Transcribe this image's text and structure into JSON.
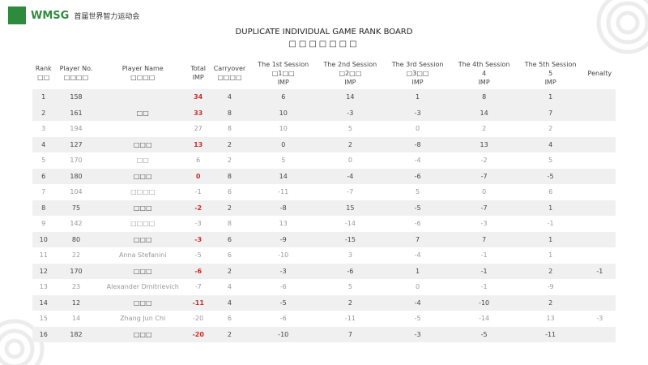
{
  "header": {
    "logo_text": "WMSG",
    "event_name": "首届世界智力运动会",
    "title": "DUPLICATE INDIVIDUAL GAME RANK BOARD",
    "subtitle": "□□□□□□□"
  },
  "table": {
    "columns": [
      [
        "Rank",
        "□□"
      ],
      [
        "Player No.",
        "□□□□"
      ],
      [
        "Player Name",
        "□□□□"
      ],
      [
        "Total",
        "IMP"
      ],
      [
        "Carryover",
        "□□□□"
      ],
      [
        "The 1st Session",
        "□1□□",
        "IMP"
      ],
      [
        "The 2nd Session",
        "□2□□",
        "IMP"
      ],
      [
        "The 3rd Session",
        "□3□□",
        "IMP"
      ],
      [
        "The 4th Session",
        "4",
        "IMP"
      ],
      [
        "The 5th Session",
        "5",
        "IMP"
      ],
      [
        "Penalty"
      ]
    ],
    "rows": [
      {
        "cells": [
          1,
          158,
          "",
          34,
          4,
          6,
          14,
          1,
          8,
          1,
          ""
        ],
        "highlight": true
      },
      {
        "cells": [
          2,
          161,
          "□□",
          33,
          8,
          10,
          -3,
          -3,
          14,
          7,
          ""
        ],
        "highlight": true
      },
      {
        "cells": [
          3,
          194,
          "",
          27,
          8,
          10,
          5,
          0,
          2,
          2,
          ""
        ],
        "highlight": false
      },
      {
        "cells": [
          4,
          127,
          "□□□",
          13,
          2,
          0,
          2,
          -8,
          13,
          4,
          ""
        ],
        "highlight": true
      },
      {
        "cells": [
          5,
          170,
          "□□",
          6,
          2,
          5,
          0,
          -4,
          -2,
          5,
          ""
        ],
        "highlight": false
      },
      {
        "cells": [
          6,
          180,
          "□□□",
          0,
          8,
          14,
          -4,
          -6,
          -7,
          -5,
          ""
        ],
        "highlight": true
      },
      {
        "cells": [
          7,
          104,
          "□□□□",
          -1,
          6,
          -11,
          -7,
          5,
          0,
          6,
          ""
        ],
        "highlight": false
      },
      {
        "cells": [
          8,
          75,
          "□□□",
          -2,
          2,
          -8,
          15,
          -5,
          -7,
          1,
          ""
        ],
        "highlight": true
      },
      {
        "cells": [
          9,
          142,
          "□□□□",
          -3,
          8,
          13,
          -14,
          -6,
          -3,
          -1,
          ""
        ],
        "highlight": false
      },
      {
        "cells": [
          10,
          80,
          "□□□",
          -3,
          6,
          -9,
          -15,
          7,
          7,
          1,
          ""
        ],
        "highlight": true
      },
      {
        "cells": [
          11,
          22,
          "Anna Stefanini",
          -5,
          6,
          -10,
          3,
          -4,
          -1,
          1,
          ""
        ],
        "highlight": false
      },
      {
        "cells": [
          12,
          170,
          "□□□",
          -6,
          2,
          -3,
          -6,
          1,
          -1,
          2,
          -1
        ],
        "highlight": true
      },
      {
        "cells": [
          13,
          23,
          "Alexander Dmitrievich",
          -7,
          4,
          -6,
          5,
          0,
          -1,
          -9,
          ""
        ],
        "highlight": false
      },
      {
        "cells": [
          14,
          12,
          "□□□",
          -11,
          4,
          -5,
          2,
          -4,
          -10,
          2,
          ""
        ],
        "highlight": true
      },
      {
        "cells": [
          15,
          14,
          "Zhang Jun Chi",
          -20,
          6,
          -6,
          -11,
          -5,
          -14,
          13,
          -3
        ],
        "highlight": false
      },
      {
        "cells": [
          16,
          182,
          "□□□",
          -20,
          2,
          -10,
          7,
          -3,
          -5,
          -11,
          ""
        ],
        "highlight": true
      }
    ]
  }
}
